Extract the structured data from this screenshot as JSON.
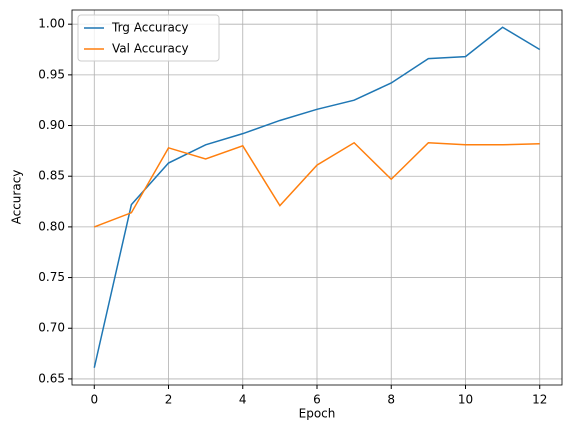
{
  "chart_data": {
    "type": "line",
    "xlabel": "Epoch",
    "ylabel": "Accuracy",
    "x": [
      0,
      1,
      2,
      3,
      4,
      5,
      6,
      7,
      8,
      9,
      10,
      11,
      12
    ],
    "series": [
      {
        "name": "Trg Accuracy",
        "color": "#1f77b4",
        "values": [
          0.661,
          0.822,
          0.863,
          0.881,
          0.892,
          0.905,
          0.916,
          0.925,
          0.942,
          0.966,
          0.968,
          0.997,
          0.975
        ]
      },
      {
        "name": "Val Accuracy",
        "color": "#ff7f0e",
        "values": [
          0.8,
          0.814,
          0.878,
          0.867,
          0.88,
          0.821,
          0.861,
          0.883,
          0.847,
          0.883,
          0.881,
          0.881,
          0.882
        ]
      }
    ],
    "xlim": [
      -0.6,
      12.6
    ],
    "xticks": [
      0,
      2,
      4,
      6,
      8,
      10,
      12
    ],
    "ylim": [
      0.644,
      1.014
    ],
    "yticks": [
      {
        "value": 0.65,
        "label": "0.65"
      },
      {
        "value": 0.7,
        "label": "0.70"
      },
      {
        "value": 0.75,
        "label": "0.75"
      },
      {
        "value": 0.8,
        "label": "0.80"
      },
      {
        "value": 0.85,
        "label": "0.85"
      },
      {
        "value": 0.9,
        "label": "0.90"
      },
      {
        "value": 0.95,
        "label": "0.95"
      },
      {
        "value": 1.0,
        "label": "1.00"
      }
    ],
    "grid": true,
    "legend": "upper-left"
  }
}
